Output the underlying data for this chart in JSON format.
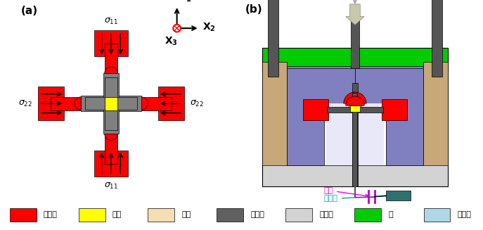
{
  "fig_width": 6.87,
  "fig_height": 3.27,
  "colors": {
    "red": "#FF0000",
    "yellow": "#FFFF00",
    "silicone": "#F5DEB3",
    "gray": "#808080",
    "light_gray": "#D3D3D3",
    "green": "#00CC00",
    "blue_purple": "#8080C0",
    "light_blue": "#ADD8E6",
    "teal": "#2F7070",
    "white": "#FFFFFF",
    "black": "#000000",
    "magenta": "#FF00FF",
    "dark_gray": "#555555",
    "beige": "#C8A878",
    "arrow_gray": "#C8C8B0"
  },
  "legend_items": [
    {
      "label": "加载块",
      "color": "#FF0000"
    },
    {
      "label": "样品",
      "color": "#FFFF00"
    },
    {
      "label": "硅油",
      "color": "#F5DEB3"
    },
    {
      "label": "受压杆",
      "color": "#606060"
    },
    {
      "label": "氧化铝",
      "color": "#D3D3D3"
    },
    {
      "label": "钢",
      "color": "#00CC00"
    },
    {
      "label": "密封圈",
      "color": "#ADD8E6"
    }
  ]
}
